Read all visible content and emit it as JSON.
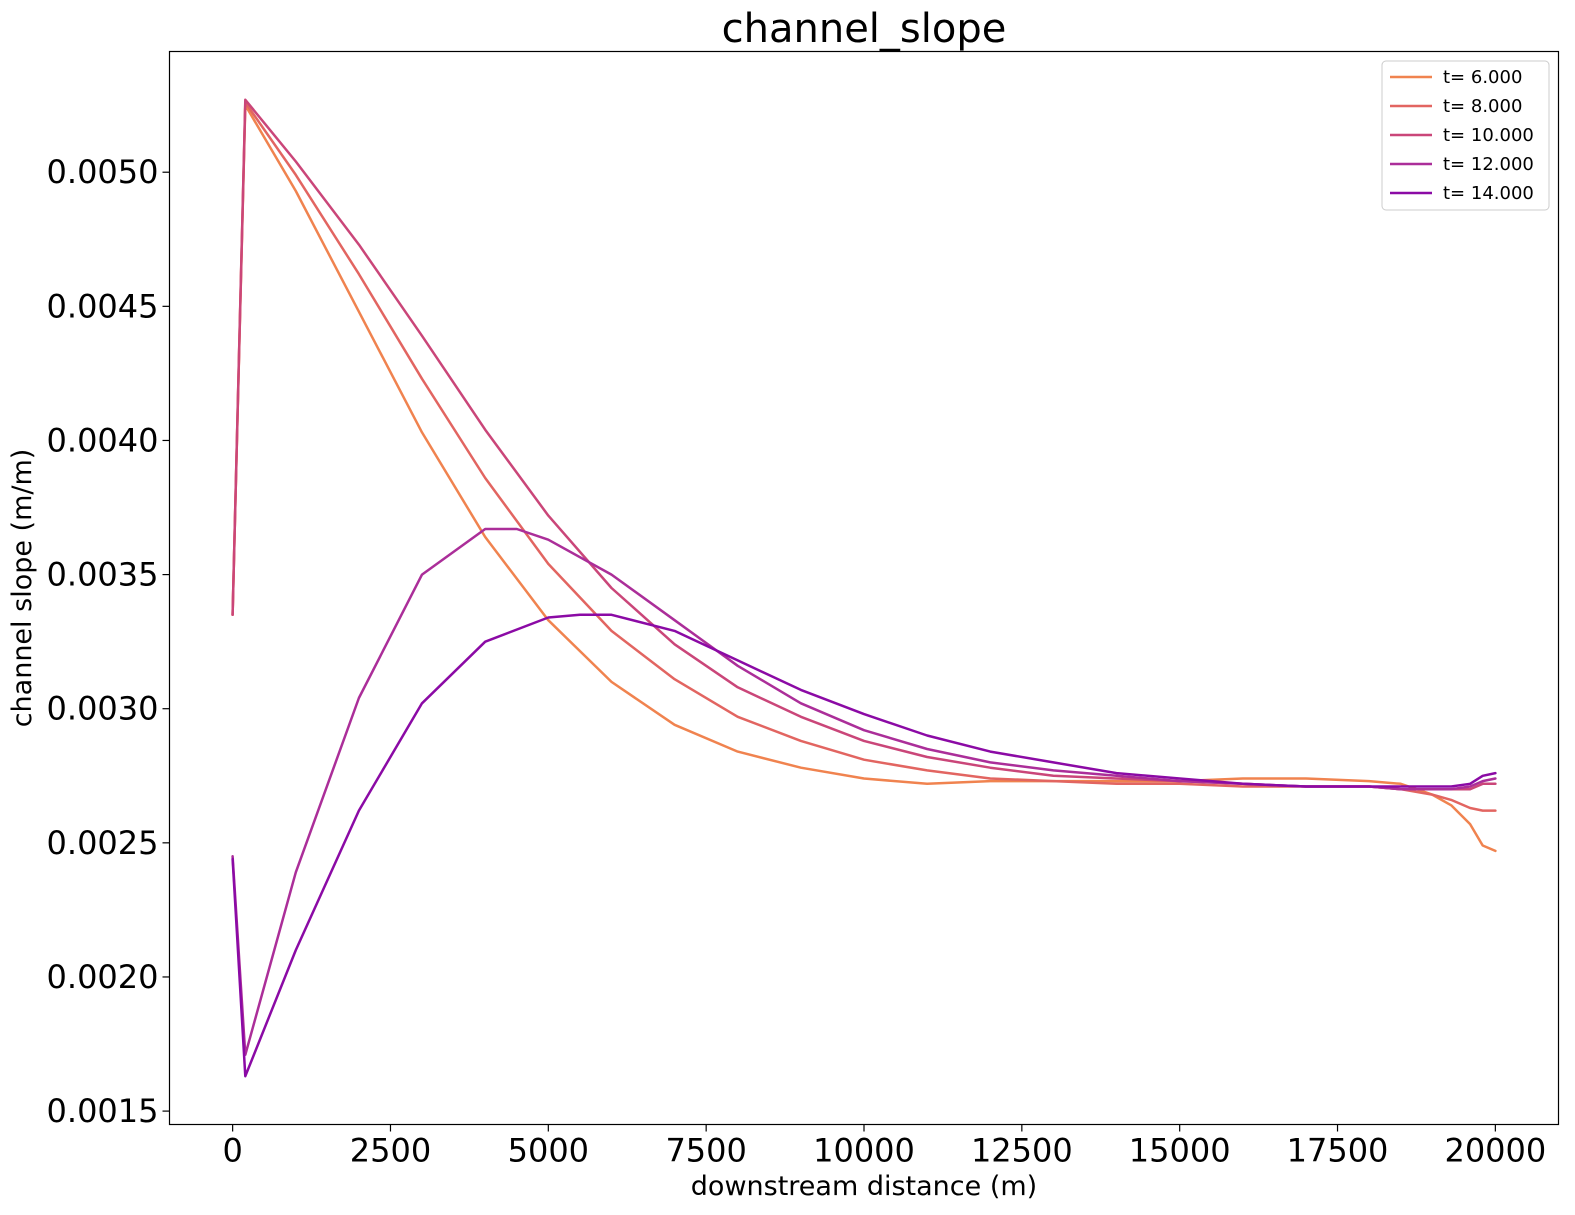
{
  "chart_data": {
    "type": "line",
    "title": "channel_slope",
    "xlabel": "downstream distance (m)",
    "ylabel": "channel slope (m/m)",
    "xlim": [
      -1000,
      21000
    ],
    "ylim": [
      0.00145,
      0.00545
    ],
    "xticks": [
      0,
      2500,
      5000,
      7500,
      10000,
      12500,
      15000,
      17500,
      20000
    ],
    "xtick_labels": [
      "0",
      "2500",
      "5000",
      "7500",
      "10000",
      "12500",
      "15000",
      "17500",
      "20000"
    ],
    "yticks": [
      0.0015,
      0.002,
      0.0025,
      0.003,
      0.0035,
      0.004,
      0.0045,
      0.005
    ],
    "ytick_labels": [
      "0.0015",
      "0.0020",
      "0.0025",
      "0.0030",
      "0.0035",
      "0.0040",
      "0.0045",
      "0.0050"
    ],
    "grid": false,
    "legend_position": "top-right",
    "series": [
      {
        "name": "t= 6.000",
        "color": "#f0834f",
        "points": [
          [
            0,
            0.00335
          ],
          [
            200,
            0.00525
          ],
          [
            1000,
            0.00493
          ],
          [
            2000,
            0.00448
          ],
          [
            3000,
            0.00403
          ],
          [
            4000,
            0.00364
          ],
          [
            5000,
            0.00333
          ],
          [
            6000,
            0.0031
          ],
          [
            7000,
            0.00294
          ],
          [
            8000,
            0.00284
          ],
          [
            9000,
            0.00278
          ],
          [
            10000,
            0.00274
          ],
          [
            11000,
            0.00272
          ],
          [
            12000,
            0.00273
          ],
          [
            13000,
            0.00273
          ],
          [
            14000,
            0.00273
          ],
          [
            15000,
            0.00273
          ],
          [
            16000,
            0.00274
          ],
          [
            17000,
            0.00274
          ],
          [
            18000,
            0.00273
          ],
          [
            18500,
            0.00272
          ],
          [
            19000,
            0.00268
          ],
          [
            19300,
            0.00264
          ],
          [
            19600,
            0.00257
          ],
          [
            19800,
            0.00249
          ],
          [
            20000,
            0.00247
          ]
        ]
      },
      {
        "name": "t= 8.000",
        "color": "#e26561",
        "points": [
          [
            0,
            0.00335
          ],
          [
            200,
            0.00526
          ],
          [
            1000,
            0.00499
          ],
          [
            2000,
            0.00462
          ],
          [
            3000,
            0.00423
          ],
          [
            4000,
            0.00386
          ],
          [
            5000,
            0.00354
          ],
          [
            6000,
            0.00329
          ],
          [
            7000,
            0.00311
          ],
          [
            8000,
            0.00297
          ],
          [
            9000,
            0.00288
          ],
          [
            10000,
            0.00281
          ],
          [
            11000,
            0.00277
          ],
          [
            12000,
            0.00274
          ],
          [
            13000,
            0.00273
          ],
          [
            14000,
            0.00272
          ],
          [
            15000,
            0.00272
          ],
          [
            16000,
            0.00271
          ],
          [
            17000,
            0.00271
          ],
          [
            18000,
            0.00271
          ],
          [
            18500,
            0.0027
          ],
          [
            19000,
            0.00268
          ],
          [
            19300,
            0.00266
          ],
          [
            19600,
            0.00263
          ],
          [
            19800,
            0.00262
          ],
          [
            20000,
            0.00262
          ]
        ]
      },
      {
        "name": "t= 10.000",
        "color": "#ca4679",
        "points": [
          [
            0,
            0.00335
          ],
          [
            200,
            0.00527
          ],
          [
            1000,
            0.00504
          ],
          [
            2000,
            0.00473
          ],
          [
            3000,
            0.00439
          ],
          [
            4000,
            0.00404
          ],
          [
            5000,
            0.00372
          ],
          [
            6000,
            0.00345
          ],
          [
            7000,
            0.00324
          ],
          [
            8000,
            0.00308
          ],
          [
            9000,
            0.00297
          ],
          [
            10000,
            0.00288
          ],
          [
            11000,
            0.00282
          ],
          [
            12000,
            0.00278
          ],
          [
            13000,
            0.00275
          ],
          [
            14000,
            0.00274
          ],
          [
            15000,
            0.00273
          ],
          [
            16000,
            0.00272
          ],
          [
            17000,
            0.00271
          ],
          [
            18000,
            0.00271
          ],
          [
            18500,
            0.0027
          ],
          [
            19000,
            0.0027
          ],
          [
            19300,
            0.0027
          ],
          [
            19600,
            0.0027
          ],
          [
            19800,
            0.00272
          ],
          [
            20000,
            0.00272
          ]
        ]
      },
      {
        "name": "t= 12.000",
        "color": "#ab2e99",
        "points": [
          [
            0,
            0.00245
          ],
          [
            200,
            0.00171
          ],
          [
            1000,
            0.00239
          ],
          [
            2000,
            0.00304
          ],
          [
            3000,
            0.0035
          ],
          [
            4000,
            0.00367
          ],
          [
            4500,
            0.00367
          ],
          [
            5000,
            0.00363
          ],
          [
            6000,
            0.0035
          ],
          [
            7000,
            0.00333
          ],
          [
            8000,
            0.00316
          ],
          [
            9000,
            0.00302
          ],
          [
            10000,
            0.00292
          ],
          [
            11000,
            0.00285
          ],
          [
            12000,
            0.0028
          ],
          [
            13000,
            0.00277
          ],
          [
            14000,
            0.00275
          ],
          [
            15000,
            0.00273
          ],
          [
            16000,
            0.00272
          ],
          [
            17000,
            0.00271
          ],
          [
            18000,
            0.00271
          ],
          [
            18500,
            0.0027
          ],
          [
            19000,
            0.0027
          ],
          [
            19300,
            0.0027
          ],
          [
            19600,
            0.00271
          ],
          [
            19800,
            0.00273
          ],
          [
            20000,
            0.00274
          ]
        ]
      },
      {
        "name": "t= 14.000",
        "color": "#8b0aa5",
        "points": [
          [
            0,
            0.00244
          ],
          [
            200,
            0.00163
          ],
          [
            1000,
            0.0021
          ],
          [
            2000,
            0.00262
          ],
          [
            3000,
            0.00302
          ],
          [
            4000,
            0.00325
          ],
          [
            5000,
            0.00334
          ],
          [
            5500,
            0.00335
          ],
          [
            6000,
            0.00335
          ],
          [
            7000,
            0.00329
          ],
          [
            8000,
            0.00318
          ],
          [
            9000,
            0.00307
          ],
          [
            10000,
            0.00298
          ],
          [
            11000,
            0.0029
          ],
          [
            12000,
            0.00284
          ],
          [
            13000,
            0.0028
          ],
          [
            14000,
            0.00276
          ],
          [
            15000,
            0.00274
          ],
          [
            16000,
            0.00272
          ],
          [
            17000,
            0.00271
          ],
          [
            18000,
            0.00271
          ],
          [
            18500,
            0.00271
          ],
          [
            19000,
            0.00271
          ],
          [
            19300,
            0.00271
          ],
          [
            19600,
            0.00272
          ],
          [
            19800,
            0.00275
          ],
          [
            20000,
            0.00276
          ]
        ]
      }
    ]
  }
}
